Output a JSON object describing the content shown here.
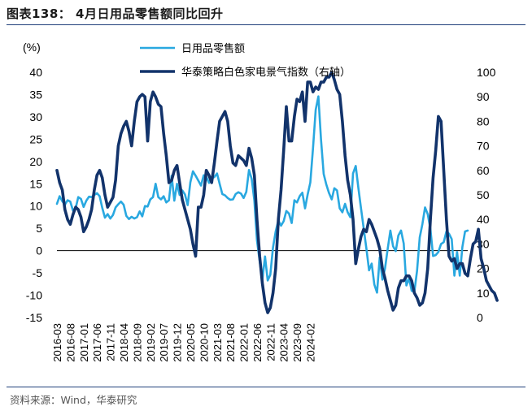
{
  "figure_title": "图表138： 4月日用品零售额同比回升",
  "source": "资料来源：Wind，华泰研究",
  "chart_data": {
    "type": "line",
    "left_unit": "(%)",
    "ylim_left": [
      -15,
      40
    ],
    "yticks_left": [
      "40",
      "35",
      "30",
      "25",
      "20",
      "15",
      "10",
      "5",
      "0",
      "-5",
      "-10",
      "-15"
    ],
    "ylim_right": [
      0,
      100
    ],
    "yticks_right": [
      "100",
      "90",
      "80",
      "70",
      "60",
      "50",
      "40",
      "30",
      "20",
      "10",
      "0"
    ],
    "xtick_labels": [
      "2016-03",
      "2016-08",
      "2017-01",
      "2017-06",
      "2017-11",
      "2018-04",
      "2018-09",
      "2019-02",
      "2019-07",
      "2019-12",
      "2020-05",
      "2020-10",
      "2021-03",
      "2021-08",
      "2022-01",
      "2022-06",
      "2022-11",
      "2023-04",
      "2023-09",
      "2024-02"
    ],
    "colors": {
      "series1": "#29a8e0",
      "series2": "#12336b"
    },
    "series": [
      {
        "name": "日用品零售额",
        "axis": "left",
        "values": [
          10.5,
          12.2,
          11.1,
          10.3,
          11.3,
          11.0,
          9.0,
          9.5,
          12.0,
          11.6,
          9.8,
          11.2,
          12.1,
          12.0,
          12.5,
          12.9,
          12.2,
          9.6,
          7.4,
          8.2,
          7.2,
          8.0,
          9.7,
          10.4,
          11.0,
          10.3,
          7.8,
          7.1,
          7.6,
          7.2,
          7.5,
          8.8,
          7.7,
          10.0,
          9.9,
          11.5,
          12.0,
          15.0,
          12.0,
          11.5,
          12.2,
          10.8,
          11.3,
          16.8,
          11.2,
          15.0,
          12.5,
          13.5,
          12.6,
          10.2,
          15.3,
          17.8,
          16.8,
          15.7,
          14.6,
          16.9,
          16.6,
          15.2,
          16.2,
          16.5,
          17.3,
          15.0,
          12.7,
          12.4,
          11.8,
          11.4,
          11.5,
          12.7,
          13.1,
          12.8,
          11.8,
          13.2,
          18.1,
          16.1,
          11.2,
          2.3,
          -2.3,
          -6.6,
          -1.3,
          -6.7,
          -5.4,
          0.7,
          4.3,
          6.8,
          5.6,
          6.6,
          8.9,
          8.3,
          6.2,
          11.3,
          10.8,
          12.2,
          13.0,
          9.5,
          12.6,
          15.3,
          23.0,
          31.6,
          34.6,
          25.0,
          17.2,
          14.8,
          12.9,
          11.5,
          14.0,
          13.5,
          9.5,
          8.6,
          10.5,
          8.6,
          7.5,
          17.3,
          19.0,
          14.0,
          9.5,
          5.0,
          0.5,
          -4.4,
          -2.9,
          -7.6,
          -9.4,
          -1.5,
          -6.5,
          -4.0,
          0.4,
          4.5,
          1.0,
          -0.1,
          3.4,
          4.5,
          1.6,
          -7.8,
          -6.2,
          -9.0,
          -9.2,
          -4.5,
          3.0,
          6.0,
          9.7,
          8.2,
          4.9,
          -1.2,
          -1.0,
          -0.3,
          1.5,
          1.9,
          4.3,
          3.8,
          2.6,
          -5.6,
          -0.3,
          -5.6,
          0.8,
          4.3,
          4.5
        ]
      },
      {
        "name": "华泰策略白色家电景气指数（右轴）",
        "axis": "right",
        "values": [
          60,
          55,
          52,
          44,
          40,
          38,
          42,
          45,
          44,
          41,
          35,
          37,
          40,
          44,
          52,
          58,
          60,
          57,
          50,
          45,
          47,
          49,
          56,
          70,
          75,
          78,
          80,
          76,
          70,
          80,
          88,
          90,
          91,
          90,
          72,
          88,
          92,
          90,
          87,
          86,
          75,
          66,
          55,
          56,
          60,
          62,
          55,
          48,
          44,
          40,
          36,
          30,
          25,
          45,
          45,
          50,
          60,
          58,
          55,
          63,
          72,
          80,
          82,
          84,
          80,
          70,
          63,
          62,
          66,
          65,
          64,
          62,
          69,
          65,
          58,
          40,
          25,
          14,
          6,
          2,
          4,
          10,
          20,
          40,
          52,
          68,
          86,
          72,
          72,
          82,
          89,
          88,
          92,
          80,
          96,
          96,
          92,
          94,
          93,
          96,
          96,
          98,
          98,
          100,
          97,
          93,
          91,
          80,
          66,
          56,
          50,
          40,
          22,
          28,
          33,
          36,
          35,
          40,
          38,
          35,
          32,
          28,
          20,
          16,
          11,
          7,
          3,
          5,
          12,
          15,
          15,
          17,
          17,
          15,
          10,
          8,
          5,
          6,
          10,
          20,
          40,
          57,
          68,
          82,
          80,
          60,
          40,
          25,
          23,
          24,
          20,
          22,
          22,
          18,
          17,
          24,
          30,
          31,
          36,
          24,
          20,
          15,
          13,
          11,
          10,
          7
        ]
      }
    ]
  }
}
